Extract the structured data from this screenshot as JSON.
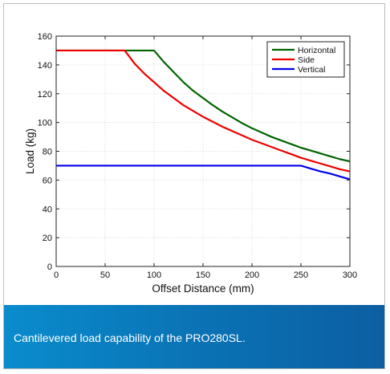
{
  "chart_data": {
    "type": "line",
    "title": "",
    "xlabel": "Offset Distance (mm)",
    "ylabel": "Load (kg)",
    "xlim": [
      0,
      300
    ],
    "ylim": [
      0,
      160
    ],
    "xticks": [
      0,
      50,
      100,
      150,
      200,
      250,
      300
    ],
    "yticks": [
      0,
      20,
      40,
      60,
      80,
      100,
      120,
      140,
      160
    ],
    "grid": true,
    "legend_position": "top-right",
    "series": [
      {
        "name": "Horizontal",
        "color": "#006400",
        "x": [
          0,
          100,
          110,
          120,
          130,
          140,
          150,
          160,
          170,
          180,
          190,
          200,
          210,
          220,
          230,
          240,
          250,
          260,
          270,
          280,
          290,
          300
        ],
        "y": [
          150,
          150,
          142,
          135,
          128,
          122,
          117,
          112,
          107.5,
          103.5,
          99.5,
          96,
          93,
          90,
          87.5,
          85,
          82.5,
          80.5,
          78.5,
          76.5,
          74.5,
          73
        ]
      },
      {
        "name": "Side",
        "color": "#ee0000",
        "x": [
          0,
          70,
          80,
          90,
          100,
          110,
          120,
          130,
          140,
          150,
          160,
          170,
          180,
          190,
          200,
          210,
          220,
          230,
          240,
          250,
          260,
          270,
          280,
          290,
          300
        ],
        "y": [
          150,
          150,
          141,
          134,
          128,
          122,
          117,
          112,
          108,
          104,
          100.5,
          97,
          94,
          91,
          88,
          85.5,
          83,
          80.5,
          78,
          75.5,
          73.5,
          71.5,
          69.5,
          67.5,
          66
        ]
      },
      {
        "name": "Vertical",
        "color": "#0000ee",
        "x": [
          0,
          250,
          260,
          270,
          280,
          290,
          300
        ],
        "y": [
          70,
          70,
          68,
          66,
          64.5,
          62.5,
          60.5
        ]
      }
    ]
  },
  "caption": "Cantilevered load capability of the PRO280SL."
}
